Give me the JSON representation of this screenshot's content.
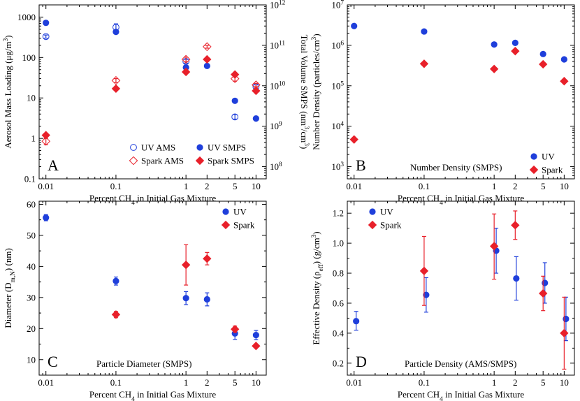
{
  "chart_data": [
    {
      "id": "A",
      "type": "scatter",
      "panel_label": "A",
      "xlabel": "Percent CH4 in Initial Gas Mixture",
      "ylabel": "Aerosol Mass Loading (μg/m3)",
      "y2label": "Total Volume SMPS (nm3/cm3)",
      "xscale": "log",
      "yscale": "log",
      "xlim": [
        0.008,
        14
      ],
      "ylim": [
        0.1,
        2000
      ],
      "xticks": [
        0.01,
        0.1,
        1,
        2,
        5,
        10
      ],
      "xtick_labels": [
        "0.01",
        "0.1",
        "1",
        "2",
        "5",
        "10"
      ],
      "yticks": [
        0.1,
        1,
        10,
        100,
        1000
      ],
      "ytick_labels": [
        "0.1",
        "1",
        "10",
        "100",
        "1000"
      ],
      "y2lim": [
        50000000,
        1000000000000
      ],
      "y2ticks": [
        100000000,
        1000000000,
        10000000000,
        100000000000,
        1000000000000
      ],
      "y2tick_labels": [
        "10^8",
        "10^9",
        "10^10",
        "10^11",
        "10^12"
      ],
      "legend_position": "bottom-right",
      "series": [
        {
          "name": "UV AMS",
          "marker": "circle-open",
          "color": "#1f3fdb",
          "points": [
            {
              "x": 0.01,
              "y": 330,
              "yerr": [
                300,
                360
              ]
            },
            {
              "x": 0.1,
              "y": 560,
              "yerr": [
                460,
                680
              ]
            },
            {
              "x": 1,
              "y": 80,
              "yerr": [
                72,
                90
              ]
            },
            {
              "x": 5,
              "y": 3.4,
              "yerr": [
                3.0,
                3.9
              ]
            },
            {
              "x": 10,
              "y": 19,
              "yerr": [
                17,
                21
              ]
            }
          ]
        },
        {
          "name": "Spark AMS",
          "marker": "diamond-open",
          "color": "#e8202a",
          "points": [
            {
              "x": 0.01,
              "y": 0.85,
              "yerr": [
                0.7,
                1.0
              ]
            },
            {
              "x": 0.1,
              "y": 27,
              "yerr": [
                24,
                30
              ]
            },
            {
              "x": 1,
              "y": 90,
              "yerr": [
                78,
                102
              ]
            },
            {
              "x": 2,
              "y": 185,
              "yerr": [
                170,
                200
              ]
            },
            {
              "x": 5,
              "y": 30,
              "yerr": [
                26,
                34
              ]
            },
            {
              "x": 10,
              "y": 21,
              "yerr": [
                19,
                23
              ]
            }
          ]
        },
        {
          "name": "UV SMPS",
          "marker": "circle",
          "color": "#1f3fdb",
          "points": [
            {
              "x": 0.01,
              "y": 720
            },
            {
              "x": 0.1,
              "y": 430
            },
            {
              "x": 1,
              "y": 57
            },
            {
              "x": 2,
              "y": 62
            },
            {
              "x": 5,
              "y": 8.5
            },
            {
              "x": 10,
              "y": 3.1
            }
          ]
        },
        {
          "name": "Spark SMPS",
          "marker": "diamond",
          "color": "#e8202a",
          "points": [
            {
              "x": 0.01,
              "y": 1.2
            },
            {
              "x": 0.1,
              "y": 17
            },
            {
              "x": 1,
              "y": 44
            },
            {
              "x": 2,
              "y": 90
            },
            {
              "x": 5,
              "y": 38
            },
            {
              "x": 10,
              "y": 15
            }
          ]
        }
      ]
    },
    {
      "id": "B",
      "type": "scatter",
      "panel_label": "B",
      "annotation": "Number Density (SMPS)",
      "xlabel": "Percent CH4 in Initial Gas Mixture",
      "ylabel": "Number Density (particles/cm3)",
      "xscale": "log",
      "yscale": "log",
      "xlim": [
        0.008,
        14
      ],
      "ylim": [
        500,
        10000000
      ],
      "xticks": [
        0.01,
        0.1,
        1,
        2,
        5,
        10
      ],
      "xtick_labels": [
        "0.01",
        "0.1",
        "1",
        "2",
        "5",
        "10"
      ],
      "yticks": [
        1000,
        10000,
        100000,
        1000000,
        10000000
      ],
      "ytick_labels": [
        "10^3",
        "10^4",
        "10^5",
        "10^6",
        "10^7"
      ],
      "legend_position": "bottom-right",
      "series": [
        {
          "name": "UV",
          "marker": "circle",
          "color": "#1f3fdb",
          "points": [
            {
              "x": 0.01,
              "y": 3000000
            },
            {
              "x": 0.1,
              "y": 2200000
            },
            {
              "x": 1,
              "y": 1050000
            },
            {
              "x": 2,
              "y": 1150000
            },
            {
              "x": 5,
              "y": 610000
            },
            {
              "x": 10,
              "y": 450000
            }
          ]
        },
        {
          "name": "Spark",
          "marker": "diamond",
          "color": "#e8202a",
          "points": [
            {
              "x": 0.01,
              "y": 4700
            },
            {
              "x": 0.1,
              "y": 350000
            },
            {
              "x": 1,
              "y": 260000
            },
            {
              "x": 2,
              "y": 720000
            },
            {
              "x": 5,
              "y": 340000
            },
            {
              "x": 10,
              "y": 130000
            }
          ]
        }
      ]
    },
    {
      "id": "C",
      "type": "scatter",
      "panel_label": "C",
      "annotation": "Particle Diameter (SMPS)",
      "xlabel": "Percent CH4 in Initial Gas Mixture",
      "ylabel": "Diameter (Dm,N) (nm)",
      "xscale": "log",
      "yscale": "linear",
      "xlim": [
        0.008,
        14
      ],
      "ylim": [
        5,
        61
      ],
      "xticks": [
        0.01,
        0.1,
        1,
        2,
        5,
        10
      ],
      "xtick_labels": [
        "0.01",
        "0.1",
        "1",
        "2",
        "5",
        "10"
      ],
      "yticks": [
        10,
        20,
        30,
        40,
        50,
        60
      ],
      "ytick_labels": [
        "10",
        "20",
        "30",
        "40",
        "50",
        "60"
      ],
      "legend_position": "top-right",
      "series": [
        {
          "name": "UV",
          "marker": "circle",
          "color": "#1f3fdb",
          "points": [
            {
              "x": 0.01,
              "y": 55.7,
              "yerr": [
                54.7,
                56.7
              ]
            },
            {
              "x": 0.1,
              "y": 35.3,
              "yerr": [
                34.0,
                36.6
              ]
            },
            {
              "x": 1,
              "y": 29.8,
              "yerr": [
                27.7,
                31.9
              ]
            },
            {
              "x": 2,
              "y": 29.4,
              "yerr": [
                27.3,
                31.5
              ]
            },
            {
              "x": 5,
              "y": 18.4,
              "yerr": [
                16.5,
                20.3
              ]
            },
            {
              "x": 10,
              "y": 17.9,
              "yerr": [
                16.4,
                19.4
              ]
            }
          ]
        },
        {
          "name": "Spark",
          "marker": "diamond",
          "color": "#e8202a",
          "points": [
            {
              "x": 0.1,
              "y": 24.5,
              "yerr": [
                23.5,
                25.5
              ]
            },
            {
              "x": 1,
              "y": 40.5,
              "yerr": [
                34.0,
                47.0
              ]
            },
            {
              "x": 2,
              "y": 42.5,
              "yerr": [
                40.5,
                44.5
              ]
            },
            {
              "x": 5,
              "y": 19.8,
              "yerr": [
                18.8,
                20.8
              ]
            },
            {
              "x": 10,
              "y": 14.4,
              "yerr": [
                14.0,
                14.8
              ]
            }
          ]
        }
      ]
    },
    {
      "id": "D",
      "type": "scatter",
      "panel_label": "D",
      "annotation": "Particle Density (AMS/SMPS)",
      "xlabel": "Percent CH4 in Initial Gas Mixture",
      "ylabel": "Effective Density (ρeff) (g/cm3)",
      "xscale": "log",
      "yscale": "linear",
      "xlim": [
        0.008,
        14
      ],
      "ylim": [
        0.12,
        1.28
      ],
      "xticks": [
        0.01,
        0.1,
        1,
        2,
        5,
        10
      ],
      "xtick_labels": [
        "0.01",
        "0.1",
        "1",
        "2",
        "5",
        "10"
      ],
      "yticks": [
        0.2,
        0.4,
        0.6,
        0.8,
        1.0,
        1.2
      ],
      "ytick_labels": [
        "0.2",
        "0.4",
        "0.6",
        "0.8",
        "1.0",
        "1.2"
      ],
      "legend_position": "top-left",
      "series": [
        {
          "name": "UV",
          "marker": "circle",
          "color": "#1f3fdb",
          "points": [
            {
              "x": 0.0107,
              "y": 0.48,
              "yerr": [
                0.42,
                0.545
              ]
            },
            {
              "x": 0.107,
              "y": 0.655,
              "yerr": [
                0.54,
                0.77
              ]
            },
            {
              "x": 1.07,
              "y": 0.95,
              "yerr": [
                0.8,
                1.1
              ]
            },
            {
              "x": 2.07,
              "y": 0.765,
              "yerr": [
                0.62,
                0.91
              ]
            },
            {
              "x": 5.3,
              "y": 0.735,
              "yerr": [
                0.6,
                0.87
              ]
            },
            {
              "x": 10.6,
              "y": 0.495,
              "yerr": [
                0.35,
                0.64
              ]
            }
          ]
        },
        {
          "name": "Spark",
          "marker": "diamond",
          "color": "#e8202a",
          "points": [
            {
              "x": 0.1,
              "y": 0.815,
              "yerr": [
                0.585,
                1.045
              ]
            },
            {
              "x": 1,
              "y": 0.98,
              "yerr": [
                0.76,
                1.195
              ]
            },
            {
              "x": 2,
              "y": 1.12,
              "yerr": [
                1.025,
                1.215
              ]
            },
            {
              "x": 5,
              "y": 0.665,
              "yerr": [
                0.55,
                0.78
              ]
            },
            {
              "x": 10,
              "y": 0.4,
              "yerr": [
                0.16,
                0.64
              ]
            }
          ]
        }
      ]
    }
  ]
}
